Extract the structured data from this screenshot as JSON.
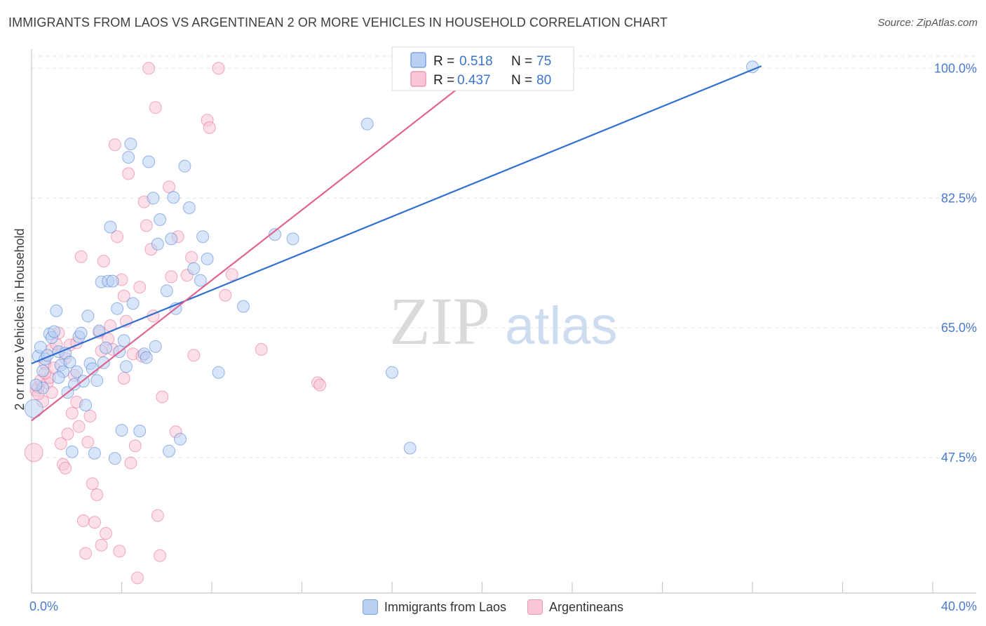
{
  "header": {
    "title": "IMMIGRANTS FROM LAOS VS ARGENTINEAN 2 OR MORE VEHICLES IN HOUSEHOLD CORRELATION CHART",
    "source": "Source: ZipAtlas.com"
  },
  "watermark": {
    "zip": "ZIP",
    "atlas": "atlas"
  },
  "legend": {
    "r_label": "R =",
    "n_label": "N =",
    "series": [
      {
        "name": "Immigrants from Laos",
        "r": "0.518",
        "n": "75",
        "color": "#4a7fd6"
      },
      {
        "name": "Argentineans",
        "r": "0.437",
        "n": "80",
        "color": "#e66a96"
      }
    ]
  },
  "chart_data": {
    "type": "scatter",
    "title": "IMMIGRANTS FROM LAOS VS ARGENTINEAN 2 OR MORE VEHICLES IN HOUSEHOLD CORRELATION CHART",
    "xlabel": "",
    "ylabel": "2 or more Vehicles in Household",
    "xlim": [
      0,
      40
    ],
    "ylim": [
      30,
      100
    ],
    "x_tick_labels": [
      "0.0%",
      "40.0%"
    ],
    "y_ticks": [
      47.5,
      65.0,
      82.5,
      100.0
    ],
    "y_tick_labels": [
      "47.5%",
      "65.0%",
      "82.5%",
      "100.0%"
    ],
    "grid": true,
    "series": [
      {
        "name": "Immigrants from Laos",
        "color": "#4a7fd6",
        "fill": "#b9d0f3",
        "trendline": {
          "x": [
            0,
            32.4
          ],
          "y": [
            60.2,
            100.3
          ]
        },
        "points": [
          [
            0.1,
            54.1
          ],
          [
            0.3,
            61.2
          ],
          [
            0.4,
            62.4
          ],
          [
            0.5,
            56.9
          ],
          [
            0.6,
            60.8
          ],
          [
            0.7,
            61.3
          ],
          [
            0.8,
            64.2
          ],
          [
            0.9,
            63.7
          ],
          [
            1.0,
            64.5
          ],
          [
            1.1,
            67.3
          ],
          [
            1.2,
            61.8
          ],
          [
            1.3,
            60.0
          ],
          [
            1.4,
            59.1
          ],
          [
            1.5,
            61.6
          ],
          [
            1.6,
            56.3
          ],
          [
            1.7,
            60.4
          ],
          [
            1.8,
            48.3
          ],
          [
            1.9,
            57.4
          ],
          [
            2.0,
            59.1
          ],
          [
            2.1,
            63.8
          ],
          [
            2.2,
            64.3
          ],
          [
            2.3,
            57.8
          ],
          [
            2.4,
            54.6
          ],
          [
            2.5,
            66.6
          ],
          [
            2.6,
            60.2
          ],
          [
            2.7,
            59.5
          ],
          [
            2.8,
            48.1
          ],
          [
            2.9,
            57.9
          ],
          [
            3.0,
            64.6
          ],
          [
            3.1,
            71.2
          ],
          [
            3.2,
            60.3
          ],
          [
            3.3,
            62.3
          ],
          [
            3.4,
            71.3
          ],
          [
            3.5,
            78.6
          ],
          [
            3.6,
            71.3
          ],
          [
            3.7,
            47.4
          ],
          [
            3.8,
            67.6
          ],
          [
            3.9,
            61.8
          ],
          [
            4.0,
            51.2
          ],
          [
            4.1,
            63.3
          ],
          [
            4.2,
            59.8
          ],
          [
            4.3,
            88.0
          ],
          [
            4.4,
            89.8
          ],
          [
            4.5,
            68.3
          ],
          [
            4.8,
            51.1
          ],
          [
            5.0,
            61.5
          ],
          [
            5.1,
            61.0
          ],
          [
            5.2,
            87.4
          ],
          [
            5.4,
            82.5
          ],
          [
            5.5,
            62.5
          ],
          [
            5.6,
            76.3
          ],
          [
            5.7,
            79.6
          ],
          [
            6.0,
            70.0
          ],
          [
            6.1,
            48.4
          ],
          [
            6.2,
            77.0
          ],
          [
            6.3,
            82.6
          ],
          [
            6.4,
            67.6
          ],
          [
            6.6,
            50.0
          ],
          [
            6.8,
            86.8
          ],
          [
            7.0,
            81.2
          ],
          [
            7.2,
            73.0
          ],
          [
            7.5,
            71.4
          ],
          [
            7.6,
            77.3
          ],
          [
            7.8,
            74.3
          ],
          [
            8.3,
            59.0
          ],
          [
            9.4,
            67.9
          ],
          [
            10.8,
            77.6
          ],
          [
            11.6,
            77.0
          ],
          [
            14.9,
            92.5
          ],
          [
            16.0,
            59.0
          ],
          [
            16.8,
            48.8
          ],
          [
            32.0,
            100.2
          ],
          [
            0.2,
            57.3
          ],
          [
            0.5,
            59.2
          ],
          [
            1.2,
            58.3
          ]
        ]
      },
      {
        "name": "Argentineans",
        "color": "#e66a96",
        "fill": "#f8c6d6",
        "trendline": {
          "x": [
            0,
            20.2
          ],
          "y": [
            52.5,
            100.3
          ]
        },
        "points": [
          [
            0.1,
            48.2
          ],
          [
            0.2,
            56.6
          ],
          [
            0.3,
            57.0
          ],
          [
            0.4,
            57.9
          ],
          [
            0.5,
            55.1
          ],
          [
            0.6,
            60.2
          ],
          [
            0.7,
            57.6
          ],
          [
            0.8,
            58.3
          ],
          [
            0.9,
            62.1
          ],
          [
            1.0,
            59.6
          ],
          [
            1.1,
            62.8
          ],
          [
            1.2,
            64.3
          ],
          [
            1.3,
            49.4
          ],
          [
            1.4,
            46.6
          ],
          [
            1.5,
            46.1
          ],
          [
            1.6,
            50.7
          ],
          [
            1.7,
            62.7
          ],
          [
            1.8,
            53.5
          ],
          [
            1.9,
            58.6
          ],
          [
            2.0,
            63.0
          ],
          [
            2.1,
            51.7
          ],
          [
            2.2,
            74.6
          ],
          [
            2.3,
            39.0
          ],
          [
            2.4,
            34.6
          ],
          [
            2.5,
            49.6
          ],
          [
            2.6,
            53.1
          ],
          [
            2.7,
            44.0
          ],
          [
            2.8,
            38.8
          ],
          [
            2.9,
            42.5
          ],
          [
            3.0,
            64.4
          ],
          [
            3.1,
            35.7
          ],
          [
            3.2,
            74.0
          ],
          [
            3.3,
            37.3
          ],
          [
            3.4,
            63.5
          ],
          [
            3.5,
            65.3
          ],
          [
            3.6,
            62.1
          ],
          [
            3.7,
            89.7
          ],
          [
            3.8,
            77.3
          ],
          [
            3.9,
            34.9
          ],
          [
            4.0,
            71.5
          ],
          [
            4.1,
            69.3
          ],
          [
            4.2,
            65.9
          ],
          [
            4.3,
            85.8
          ],
          [
            4.4,
            46.8
          ],
          [
            4.5,
            61.5
          ],
          [
            4.6,
            49.1
          ],
          [
            4.7,
            31.3
          ],
          [
            4.8,
            70.5
          ],
          [
            4.9,
            61.2
          ],
          [
            5.0,
            82.0
          ],
          [
            5.1,
            78.8
          ],
          [
            5.2,
            100.0
          ],
          [
            5.3,
            75.6
          ],
          [
            5.4,
            66.6
          ],
          [
            5.5,
            94.7
          ],
          [
            5.6,
            39.7
          ],
          [
            5.7,
            34.3
          ],
          [
            5.8,
            55.7
          ],
          [
            6.1,
            84.0
          ],
          [
            6.2,
            71.9
          ],
          [
            6.4,
            51.0
          ],
          [
            6.5,
            77.3
          ],
          [
            6.9,
            72.1
          ],
          [
            7.1,
            74.5
          ],
          [
            7.2,
            61.3
          ],
          [
            7.8,
            93.0
          ],
          [
            7.9,
            92.0
          ],
          [
            8.3,
            100.0
          ],
          [
            8.6,
            69.4
          ],
          [
            8.9,
            72.2
          ],
          [
            10.2,
            62.1
          ],
          [
            12.7,
            57.6
          ],
          [
            12.8,
            57.3
          ],
          [
            0.3,
            56.1
          ],
          [
            0.6,
            58.9
          ],
          [
            0.9,
            56.3
          ],
          [
            1.5,
            60.9
          ],
          [
            2.0,
            55.0
          ],
          [
            3.1,
            61.9
          ],
          [
            4.1,
            58.2
          ]
        ]
      }
    ]
  }
}
